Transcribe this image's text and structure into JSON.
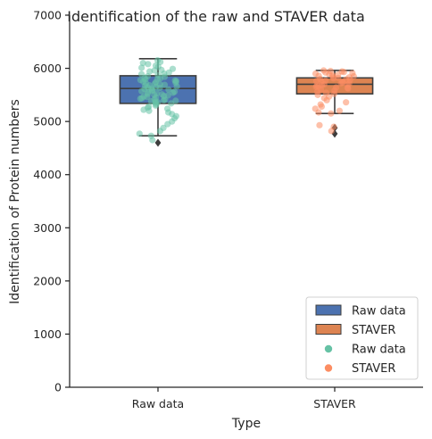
{
  "chart_data": {
    "type": "box",
    "title": "Identification of the raw and STAVER data",
    "xlabel": "Type",
    "ylabel": "Identification of Protein numbers",
    "categories": [
      "Raw data",
      "STAVER"
    ],
    "ylim": [
      0,
      7000
    ],
    "yticks": [
      0,
      1000,
      2000,
      3000,
      4000,
      5000,
      6000,
      7000
    ],
    "grid": false,
    "legend_position": "lower-right",
    "boxes": [
      {
        "category": "Raw data",
        "color": "#4c72b0",
        "whisker_low": 4730,
        "q1": 5340,
        "median": 5620,
        "q3": 5860,
        "whisker_high": 6180,
        "outliers": [
          4600
        ]
      },
      {
        "category": "STAVER",
        "color": "#dd8452",
        "whisker_low": 5150,
        "q1": 5520,
        "median": 5700,
        "q3": 5820,
        "whisker_high": 5960,
        "outliers": [
          4770,
          4880
        ]
      }
    ],
    "strip": [
      {
        "category": "Raw data",
        "color": "#66c2a5",
        "values": [
          6150,
          6120,
          6100,
          6080,
          6050,
          6030,
          6010,
          5990,
          5970,
          5960,
          5940,
          5920,
          5900,
          5890,
          5870,
          5850,
          5840,
          5820,
          5810,
          5800,
          5790,
          5780,
          5770,
          5760,
          5750,
          5740,
          5730,
          5720,
          5710,
          5700,
          5690,
          5680,
          5670,
          5660,
          5650,
          5640,
          5630,
          5620,
          5610,
          5600,
          5590,
          5580,
          5570,
          5560,
          5550,
          5540,
          5530,
          5520,
          5510,
          5500,
          5490,
          5480,
          5470,
          5460,
          5450,
          5440,
          5430,
          5420,
          5410,
          5400,
          5390,
          5380,
          5370,
          5360,
          5350,
          5340,
          5320,
          5300,
          5280,
          5260,
          5240,
          5220,
          5200,
          5170,
          5140,
          5100,
          5060,
          5000,
          4950,
          4880,
          4820,
          4770,
          4730,
          4650
        ]
      },
      {
        "category": "STAVER",
        "color": "#fc8d62",
        "values": [
          5960,
          5950,
          5940,
          5930,
          5920,
          5910,
          5900,
          5890,
          5880,
          5870,
          5860,
          5850,
          5840,
          5830,
          5820,
          5810,
          5800,
          5790,
          5780,
          5770,
          5760,
          5750,
          5740,
          5730,
          5720,
          5710,
          5700,
          5690,
          5680,
          5670,
          5660,
          5650,
          5640,
          5630,
          5620,
          5600,
          5580,
          5560,
          5540,
          5520,
          5500,
          5470,
          5440,
          5400,
          5360,
          5320,
          5280,
          5240,
          5200,
          5170,
          5150,
          4930,
          4900,
          4820
        ]
      }
    ],
    "legend": [
      {
        "label": "Raw data",
        "kind": "box",
        "color": "#4c72b0"
      },
      {
        "label": "STAVER",
        "kind": "box",
        "color": "#dd8452"
      },
      {
        "label": "Raw data",
        "kind": "dot",
        "color": "#66c2a5"
      },
      {
        "label": "STAVER",
        "kind": "dot",
        "color": "#fc8d62"
      }
    ]
  }
}
